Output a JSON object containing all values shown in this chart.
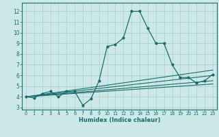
{
  "xlabel": "Humidex (Indice chaleur)",
  "xlim": [
    -0.5,
    23.5
  ],
  "ylim": [
    2.8,
    12.8
  ],
  "yticks": [
    3,
    4,
    5,
    6,
    7,
    8,
    9,
    10,
    11,
    12
  ],
  "xticks": [
    0,
    1,
    2,
    3,
    4,
    5,
    6,
    7,
    8,
    9,
    10,
    11,
    12,
    13,
    14,
    15,
    16,
    17,
    18,
    19,
    20,
    21,
    22,
    23
  ],
  "bg_color": "#cce8e8",
  "grid_color": "#aacece",
  "line_color": "#1a6b6b",
  "line0_x": [
    0,
    1,
    2,
    3,
    4,
    5,
    6,
    7,
    8,
    9,
    10,
    11,
    12,
    13,
    14,
    15,
    16,
    17,
    18,
    19,
    20,
    21,
    22,
    23
  ],
  "line0_y": [
    4.0,
    3.9,
    4.3,
    4.5,
    4.0,
    4.5,
    4.5,
    3.2,
    3.8,
    5.5,
    8.7,
    8.9,
    9.5,
    12.0,
    12.0,
    10.4,
    9.0,
    9.0,
    7.0,
    5.8,
    5.8,
    5.3,
    5.5,
    6.1
  ],
  "line1_x": [
    0,
    23
  ],
  "line1_y": [
    4.0,
    6.5
  ],
  "line2_x": [
    0,
    23
  ],
  "line2_y": [
    4.0,
    6.0
  ],
  "line3_x": [
    0,
    23
  ],
  "line3_y": [
    4.0,
    5.5
  ],
  "line4_x": [
    0,
    23
  ],
  "line4_y": [
    4.0,
    5.2
  ]
}
